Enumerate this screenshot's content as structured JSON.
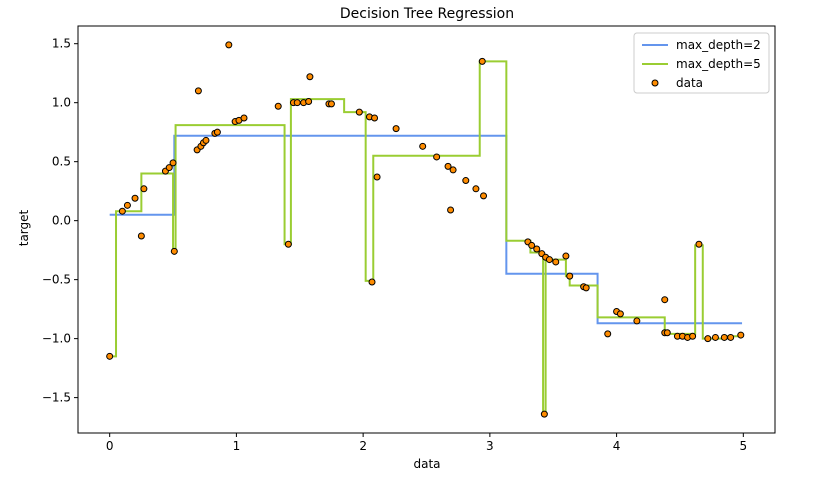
{
  "chart_data": {
    "type": "scatter",
    "title": "Decision Tree Regression",
    "xlabel": "data",
    "ylabel": "target",
    "xlim": [
      -0.25,
      5.25
    ],
    "ylim": [
      -1.8,
      1.65
    ],
    "grid": false,
    "legend_position": "top-right",
    "x_ticks": [
      {
        "value": 0,
        "label": "0"
      },
      {
        "value": 1,
        "label": "1"
      },
      {
        "value": 2,
        "label": "2"
      },
      {
        "value": 3,
        "label": "3"
      },
      {
        "value": 4,
        "label": "4"
      },
      {
        "value": 5,
        "label": "5"
      }
    ],
    "y_ticks": [
      {
        "value": -1.5,
        "label": "−1.5"
      },
      {
        "value": -1.0,
        "label": "−1.0"
      },
      {
        "value": -0.5,
        "label": "−0.5"
      },
      {
        "value": 0.0,
        "label": "0.0"
      },
      {
        "value": 0.5,
        "label": "0.5"
      },
      {
        "value": 1.0,
        "label": "1.0"
      },
      {
        "value": 1.5,
        "label": "1.5"
      }
    ],
    "series": [
      {
        "name": "max_depth=2",
        "kind": "line",
        "color": "#6495ed",
        "points": [
          [
            0.0,
            0.05
          ],
          [
            0.51,
            0.05
          ],
          [
            0.51,
            0.72
          ],
          [
            3.13,
            0.72
          ],
          [
            3.13,
            -0.45
          ],
          [
            3.85,
            -0.45
          ],
          [
            3.85,
            -0.87
          ],
          [
            4.99,
            -0.87
          ]
        ]
      },
      {
        "name": "max_depth=5",
        "kind": "line",
        "color": "#9acd32",
        "points": [
          [
            0.0,
            -1.15
          ],
          [
            0.05,
            -1.15
          ],
          [
            0.05,
            0.08
          ],
          [
            0.25,
            0.08
          ],
          [
            0.25,
            0.4
          ],
          [
            0.5,
            0.4
          ],
          [
            0.5,
            -0.26
          ],
          [
            0.52,
            -0.26
          ],
          [
            0.52,
            0.81
          ],
          [
            1.38,
            0.81
          ],
          [
            1.38,
            -0.2
          ],
          [
            1.43,
            -0.2
          ],
          [
            1.43,
            1.03
          ],
          [
            1.85,
            1.03
          ],
          [
            1.85,
            0.92
          ],
          [
            2.02,
            0.92
          ],
          [
            2.02,
            -0.51
          ],
          [
            2.08,
            -0.51
          ],
          [
            2.08,
            0.55
          ],
          [
            2.92,
            0.55
          ],
          [
            2.92,
            1.35
          ],
          [
            3.13,
            1.35
          ],
          [
            3.13,
            -0.17
          ],
          [
            3.32,
            -0.17
          ],
          [
            3.32,
            -0.27
          ],
          [
            3.42,
            -0.27
          ],
          [
            3.42,
            -1.64
          ],
          [
            3.44,
            -1.64
          ],
          [
            3.44,
            -0.33
          ],
          [
            3.6,
            -0.33
          ],
          [
            3.6,
            -0.47
          ],
          [
            3.63,
            -0.47
          ],
          [
            3.63,
            -0.55
          ],
          [
            3.85,
            -0.55
          ],
          [
            3.85,
            -0.82
          ],
          [
            4.38,
            -0.82
          ],
          [
            4.38,
            -0.96
          ],
          [
            4.62,
            -0.96
          ],
          [
            4.62,
            -0.21
          ],
          [
            4.68,
            -0.21
          ],
          [
            4.68,
            -1.0
          ],
          [
            4.85,
            -1.0
          ],
          [
            4.85,
            -0.98
          ],
          [
            4.99,
            -0.98
          ]
        ]
      },
      {
        "name": "data",
        "kind": "scatter",
        "color": "#ff8c00",
        "edge_color": "#000000",
        "points": [
          [
            0.0,
            -1.15
          ],
          [
            0.1,
            0.08
          ],
          [
            0.14,
            0.13
          ],
          [
            0.2,
            0.19
          ],
          [
            0.25,
            -0.13
          ],
          [
            0.27,
            0.27
          ],
          [
            0.44,
            0.42
          ],
          [
            0.47,
            0.45
          ],
          [
            0.5,
            0.49
          ],
          [
            0.51,
            -0.26
          ],
          [
            0.69,
            0.6
          ],
          [
            0.72,
            0.63
          ],
          [
            0.74,
            0.66
          ],
          [
            0.76,
            0.68
          ],
          [
            0.83,
            0.74
          ],
          [
            0.85,
            0.75
          ],
          [
            0.94,
            1.49
          ],
          [
            0.7,
            1.1
          ],
          [
            0.99,
            0.84
          ],
          [
            1.02,
            0.85
          ],
          [
            1.06,
            0.87
          ],
          [
            1.33,
            0.97
          ],
          [
            1.41,
            -0.2
          ],
          [
            1.45,
            1.0
          ],
          [
            1.48,
            1.0
          ],
          [
            1.53,
            1.0
          ],
          [
            1.57,
            1.01
          ],
          [
            1.58,
            1.22
          ],
          [
            1.73,
            0.99
          ],
          [
            1.75,
            0.99
          ],
          [
            1.97,
            0.92
          ],
          [
            2.05,
            0.88
          ],
          [
            2.07,
            -0.52
          ],
          [
            2.09,
            0.87
          ],
          [
            2.11,
            0.37
          ],
          [
            2.26,
            0.78
          ],
          [
            2.47,
            0.63
          ],
          [
            2.58,
            0.54
          ],
          [
            2.67,
            0.46
          ],
          [
            2.69,
            0.09
          ],
          [
            2.71,
            0.43
          ],
          [
            2.81,
            0.34
          ],
          [
            2.89,
            0.27
          ],
          [
            2.95,
            0.21
          ],
          [
            2.94,
            1.35
          ],
          [
            3.3,
            -0.18
          ],
          [
            3.33,
            -0.21
          ],
          [
            3.37,
            -0.24
          ],
          [
            3.41,
            -0.28
          ],
          [
            3.43,
            -1.64
          ],
          [
            3.44,
            -0.31
          ],
          [
            3.47,
            -0.33
          ],
          [
            3.52,
            -0.35
          ],
          [
            3.6,
            -0.3
          ],
          [
            3.63,
            -0.47
          ],
          [
            3.74,
            -0.56
          ],
          [
            3.76,
            -0.57
          ],
          [
            3.93,
            -0.96
          ],
          [
            4.0,
            -0.77
          ],
          [
            4.03,
            -0.79
          ],
          [
            4.16,
            -0.85
          ],
          [
            4.38,
            -0.67
          ],
          [
            4.38,
            -0.95
          ],
          [
            4.4,
            -0.95
          ],
          [
            4.48,
            -0.98
          ],
          [
            4.52,
            -0.98
          ],
          [
            4.56,
            -0.99
          ],
          [
            4.6,
            -0.98
          ],
          [
            4.65,
            -0.2
          ],
          [
            4.72,
            -1.0
          ],
          [
            4.78,
            -0.99
          ],
          [
            4.85,
            -0.99
          ],
          [
            4.9,
            -0.99
          ],
          [
            4.98,
            -0.97
          ]
        ]
      }
    ]
  }
}
